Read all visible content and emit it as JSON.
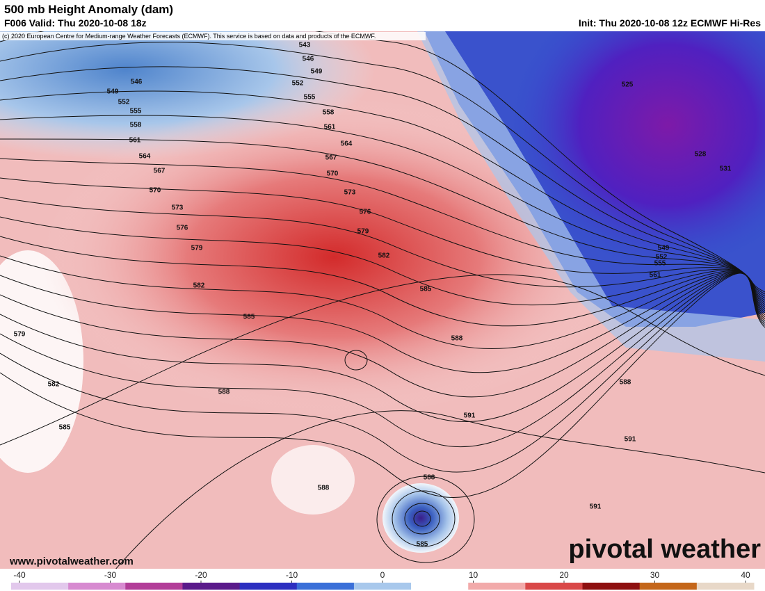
{
  "header": {
    "title": "500 mb Height Anomaly (dam)",
    "valid": "F006 Valid: Thu 2020-10-08 18z",
    "init": "Init: Thu 2020-10-08 12z ECMWF Hi-Res",
    "copyright": "(c) 2020 European Centre for Medium-range Weather Forecasts (ECMWF). This service is based on data and products of the ECMWF."
  },
  "map": {
    "contour_labels": [
      543,
      546,
      549,
      552,
      555,
      558,
      561,
      564,
      567,
      570,
      573,
      576,
      579,
      582,
      585,
      588,
      591,
      588,
      591,
      591,
      588,
      585,
      588,
      588,
      585,
      582,
      579,
      576,
      573,
      570,
      567,
      564,
      561,
      558,
      555,
      552,
      549,
      546,
      579,
      582,
      585,
      525,
      528,
      531,
      549,
      552,
      555,
      561
    ]
  },
  "colorbar": {
    "lim": [
      -40,
      40
    ],
    "ticks": [
      -40,
      -30,
      -20,
      -10,
      0,
      10,
      20,
      30,
      40
    ],
    "colors": [
      "#e2c8ec",
      "#d78ad0",
      "#b23d98",
      "#5a1a8a",
      "#2c2fc0",
      "#3a6fd8",
      "#a8c8ec",
      "#ffffff",
      "#f2aaaa",
      "#d94848",
      "#8e1010",
      "#c4661a",
      "#e8d8c8"
    ]
  },
  "footer": {
    "url": "www.pivotalweather.com",
    "brand": "pivotal weather"
  }
}
